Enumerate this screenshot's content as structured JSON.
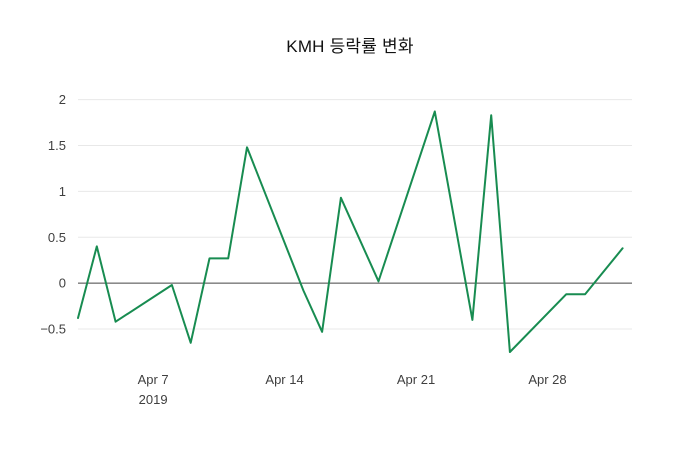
{
  "title": "KMH 등락률 변화",
  "colors": {
    "background": "#ffffff",
    "line": "#188c51",
    "grid": "#e8e8e8",
    "zero_line": "#444444",
    "tick_text": "#3f3f3f",
    "title_text": "#111111"
  },
  "chart_data": {
    "type": "line",
    "title": "KMH 등락률 변화",
    "series_name": "KMH 등락률",
    "x": [
      "2019-04-03",
      "2019-04-04",
      "2019-04-05",
      "2019-04-08",
      "2019-04-09",
      "2019-04-10",
      "2019-04-11",
      "2019-04-12",
      "2019-04-15",
      "2019-04-16",
      "2019-04-17",
      "2019-04-19",
      "2019-04-22",
      "2019-04-24",
      "2019-04-25",
      "2019-04-26",
      "2019-04-29",
      "2019-04-30",
      "2019-05-02"
    ],
    "values": [
      -0.38,
      0.4,
      -0.42,
      -0.02,
      -0.65,
      0.27,
      0.27,
      1.48,
      -0.08,
      -0.53,
      0.93,
      0.02,
      1.87,
      -0.4,
      1.83,
      -0.75,
      -0.12,
      -0.12,
      0.38
    ],
    "x_ticks": [
      {
        "date": "2019-04-07",
        "label": "Apr 7",
        "sublabel": "2019"
      },
      {
        "date": "2019-04-14",
        "label": "Apr 14"
      },
      {
        "date": "2019-04-21",
        "label": "Apr 21"
      },
      {
        "date": "2019-04-28",
        "label": "Apr 28"
      }
    ],
    "y_ticks": [
      -0.5,
      0,
      0.5,
      1,
      1.5,
      2
    ],
    "xlim": [
      "2019-04-03",
      "2019-05-02T12:00:00"
    ],
    "ylim": [
      -0.87,
      2.05
    ],
    "grid": "horizontal",
    "legend": "none"
  }
}
